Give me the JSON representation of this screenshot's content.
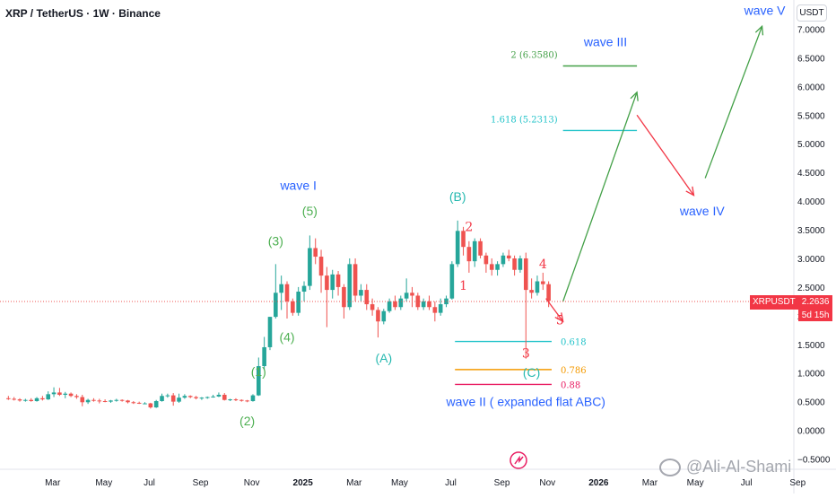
{
  "header": {
    "symbol_line": "XRP / TetherUS · 1W · Binance",
    "currency_button": "USDT"
  },
  "price_tag": {
    "symbol": "XRPUSDT",
    "price": "2.2636",
    "countdown": "5d 15h"
  },
  "watermark": "@Ali-Al-Shami",
  "colors": {
    "up": "#26a69a",
    "down": "#ef5350",
    "green_label": "#4caf50",
    "teal_label": "#26b9b0",
    "blue_label": "#2962ff",
    "red_label": "#f23645",
    "fib_teal": "#22c3c9",
    "fib_orange": "#f59a00",
    "fib_red": "#e91e63",
    "proj_green": "#43a047"
  },
  "chart_data": {
    "type": "candlestick",
    "title": "XRP / TetherUS · 1W · Binance",
    "ylim": [
      -0.5,
      7.0
    ],
    "y_ticks": [
      "7.0000",
      "6.5000",
      "6.0000",
      "5.5000",
      "5.0000",
      "4.5000",
      "4.0000",
      "3.5000",
      "3.0000",
      "2.5000",
      "2.0000",
      "1.5000",
      "1.0000",
      "0.5000",
      "0.0000",
      "−0.5000"
    ],
    "x_ticks": [
      "Mar",
      "May",
      "Jul",
      "Sep",
      "Nov",
      "2025",
      "Mar",
      "May",
      "Jul",
      "Sep",
      "Nov",
      "2026",
      "Mar",
      "May",
      "Jul",
      "Sep"
    ],
    "grid": false,
    "candles": [
      {
        "t": "2024-01-08",
        "o": 0.56,
        "h": 0.6,
        "l": 0.53,
        "c": 0.55
      },
      {
        "t": "2024-01-15",
        "o": 0.55,
        "h": 0.58,
        "l": 0.52,
        "c": 0.54
      },
      {
        "t": "2024-01-22",
        "o": 0.54,
        "h": 0.56,
        "l": 0.5,
        "c": 0.52
      },
      {
        "t": "2024-01-29",
        "o": 0.52,
        "h": 0.55,
        "l": 0.5,
        "c": 0.53
      },
      {
        "t": "2024-02-05",
        "o": 0.53,
        "h": 0.56,
        "l": 0.5,
        "c": 0.51
      },
      {
        "t": "2024-02-12",
        "o": 0.51,
        "h": 0.58,
        "l": 0.5,
        "c": 0.56
      },
      {
        "t": "2024-02-19",
        "o": 0.56,
        "h": 0.6,
        "l": 0.52,
        "c": 0.54
      },
      {
        "t": "2024-02-26",
        "o": 0.54,
        "h": 0.68,
        "l": 0.53,
        "c": 0.63
      },
      {
        "t": "2024-03-04",
        "o": 0.63,
        "h": 0.75,
        "l": 0.58,
        "c": 0.66
      },
      {
        "t": "2024-03-11",
        "o": 0.66,
        "h": 0.74,
        "l": 0.6,
        "c": 0.62
      },
      {
        "t": "2024-03-18",
        "o": 0.62,
        "h": 0.67,
        "l": 0.56,
        "c": 0.64
      },
      {
        "t": "2024-03-25",
        "o": 0.64,
        "h": 0.66,
        "l": 0.58,
        "c": 0.6
      },
      {
        "t": "2024-04-01",
        "o": 0.6,
        "h": 0.63,
        "l": 0.55,
        "c": 0.58
      },
      {
        "t": "2024-04-08",
        "o": 0.58,
        "h": 0.62,
        "l": 0.42,
        "c": 0.49
      },
      {
        "t": "2024-04-15",
        "o": 0.49,
        "h": 0.55,
        "l": 0.46,
        "c": 0.53
      },
      {
        "t": "2024-04-22",
        "o": 0.53,
        "h": 0.56,
        "l": 0.5,
        "c": 0.52
      },
      {
        "t": "2024-04-29",
        "o": 0.52,
        "h": 0.55,
        "l": 0.47,
        "c": 0.51
      },
      {
        "t": "2024-05-06",
        "o": 0.51,
        "h": 0.54,
        "l": 0.49,
        "c": 0.5
      },
      {
        "t": "2024-05-13",
        "o": 0.5,
        "h": 0.53,
        "l": 0.48,
        "c": 0.52
      },
      {
        "t": "2024-05-20",
        "o": 0.52,
        "h": 0.55,
        "l": 0.5,
        "c": 0.53
      },
      {
        "t": "2024-05-27",
        "o": 0.53,
        "h": 0.54,
        "l": 0.5,
        "c": 0.52
      },
      {
        "t": "2024-06-03",
        "o": 0.52,
        "h": 0.53,
        "l": 0.47,
        "c": 0.49
      },
      {
        "t": "2024-06-10",
        "o": 0.49,
        "h": 0.51,
        "l": 0.46,
        "c": 0.48
      },
      {
        "t": "2024-06-17",
        "o": 0.48,
        "h": 0.5,
        "l": 0.46,
        "c": 0.47
      },
      {
        "t": "2024-06-24",
        "o": 0.47,
        "h": 0.49,
        "l": 0.46,
        "c": 0.47
      },
      {
        "t": "2024-07-01",
        "o": 0.47,
        "h": 0.48,
        "l": 0.38,
        "c": 0.4
      },
      {
        "t": "2024-07-08",
        "o": 0.4,
        "h": 0.53,
        "l": 0.39,
        "c": 0.51
      },
      {
        "t": "2024-07-15",
        "o": 0.51,
        "h": 0.64,
        "l": 0.5,
        "c": 0.6
      },
      {
        "t": "2024-07-22",
        "o": 0.6,
        "h": 0.64,
        "l": 0.57,
        "c": 0.61
      },
      {
        "t": "2024-07-29",
        "o": 0.61,
        "h": 0.65,
        "l": 0.43,
        "c": 0.5
      },
      {
        "t": "2024-08-05",
        "o": 0.5,
        "h": 0.64,
        "l": 0.48,
        "c": 0.57
      },
      {
        "t": "2024-08-12",
        "o": 0.57,
        "h": 0.63,
        "l": 0.55,
        "c": 0.6
      },
      {
        "t": "2024-08-19",
        "o": 0.6,
        "h": 0.61,
        "l": 0.56,
        "c": 0.58
      },
      {
        "t": "2024-08-26",
        "o": 0.58,
        "h": 0.6,
        "l": 0.54,
        "c": 0.56
      },
      {
        "t": "2024-09-02",
        "o": 0.56,
        "h": 0.58,
        "l": 0.53,
        "c": 0.57
      },
      {
        "t": "2024-09-09",
        "o": 0.57,
        "h": 0.59,
        "l": 0.55,
        "c": 0.58
      },
      {
        "t": "2024-09-16",
        "o": 0.58,
        "h": 0.62,
        "l": 0.57,
        "c": 0.59
      },
      {
        "t": "2024-09-23",
        "o": 0.59,
        "h": 0.66,
        "l": 0.58,
        "c": 0.62
      },
      {
        "t": "2024-09-30",
        "o": 0.62,
        "h": 0.65,
        "l": 0.52,
        "c": 0.53
      },
      {
        "t": "2024-10-07",
        "o": 0.53,
        "h": 0.55,
        "l": 0.51,
        "c": 0.54
      },
      {
        "t": "2024-10-14",
        "o": 0.54,
        "h": 0.56,
        "l": 0.51,
        "c": 0.53
      },
      {
        "t": "2024-10-21",
        "o": 0.53,
        "h": 0.54,
        "l": 0.5,
        "c": 0.52
      },
      {
        "t": "2024-10-28",
        "o": 0.52,
        "h": 0.53,
        "l": 0.49,
        "c": 0.51
      },
      {
        "t": "2024-11-04",
        "o": 0.51,
        "h": 0.63,
        "l": 0.5,
        "c": 0.61
      },
      {
        "t": "2024-11-11",
        "o": 0.61,
        "h": 1.27,
        "l": 0.6,
        "c": 1.12
      },
      {
        "t": "2024-11-18",
        "o": 1.12,
        "h": 1.63,
        "l": 1.05,
        "c": 1.45
      },
      {
        "t": "2024-11-25",
        "o": 1.45,
        "h": 1.98,
        "l": 1.4,
        "c": 1.98
      },
      {
        "t": "2024-12-02",
        "o": 1.98,
        "h": 2.9,
        "l": 1.95,
        "c": 2.4
      },
      {
        "t": "2024-12-09",
        "o": 2.4,
        "h": 2.7,
        "l": 2.1,
        "c": 2.55
      },
      {
        "t": "2024-12-16",
        "o": 2.55,
        "h": 2.6,
        "l": 1.95,
        "c": 2.25
      },
      {
        "t": "2024-12-23",
        "o": 2.25,
        "h": 2.3,
        "l": 2.0,
        "c": 2.05
      },
      {
        "t": "2024-12-30",
        "o": 2.05,
        "h": 2.5,
        "l": 2.0,
        "c": 2.42
      },
      {
        "t": "2025-01-06",
        "o": 2.42,
        "h": 2.6,
        "l": 2.25,
        "c": 2.52
      },
      {
        "t": "2025-01-13",
        "o": 2.52,
        "h": 3.4,
        "l": 2.45,
        "c": 3.18
      },
      {
        "t": "2025-01-20",
        "o": 3.18,
        "h": 3.35,
        "l": 2.9,
        "c": 3.03
      },
      {
        "t": "2025-01-27",
        "o": 3.03,
        "h": 3.15,
        "l": 2.4,
        "c": 2.7
      },
      {
        "t": "2025-02-03",
        "o": 2.7,
        "h": 2.85,
        "l": 1.8,
        "c": 2.45
      },
      {
        "t": "2025-02-10",
        "o": 2.45,
        "h": 2.8,
        "l": 2.3,
        "c": 2.72
      },
      {
        "t": "2025-02-17",
        "o": 2.72,
        "h": 2.78,
        "l": 2.35,
        "c": 2.5
      },
      {
        "t": "2025-02-24",
        "o": 2.5,
        "h": 2.55,
        "l": 1.95,
        "c": 2.15
      },
      {
        "t": "2025-03-03",
        "o": 2.15,
        "h": 3.0,
        "l": 2.1,
        "c": 2.9
      },
      {
        "t": "2025-03-10",
        "o": 2.9,
        "h": 3.0,
        "l": 2.25,
        "c": 2.35
      },
      {
        "t": "2025-03-17",
        "o": 2.35,
        "h": 2.55,
        "l": 2.25,
        "c": 2.45
      },
      {
        "t": "2025-03-24",
        "o": 2.45,
        "h": 2.55,
        "l": 2.1,
        "c": 2.2
      },
      {
        "t": "2025-03-31",
        "o": 2.2,
        "h": 2.3,
        "l": 2.0,
        "c": 2.1
      },
      {
        "t": "2025-04-07",
        "o": 2.1,
        "h": 2.15,
        "l": 1.62,
        "c": 1.9
      },
      {
        "t": "2025-04-14",
        "o": 1.9,
        "h": 2.12,
        "l": 1.85,
        "c": 2.08
      },
      {
        "t": "2025-04-21",
        "o": 2.08,
        "h": 2.3,
        "l": 2.05,
        "c": 2.25
      },
      {
        "t": "2025-04-28",
        "o": 2.25,
        "h": 2.35,
        "l": 2.1,
        "c": 2.15
      },
      {
        "t": "2025-05-05",
        "o": 2.15,
        "h": 2.35,
        "l": 2.1,
        "c": 2.3
      },
      {
        "t": "2025-05-12",
        "o": 2.3,
        "h": 2.65,
        "l": 2.25,
        "c": 2.4
      },
      {
        "t": "2025-05-19",
        "o": 2.4,
        "h": 2.5,
        "l": 2.15,
        "c": 2.35
      },
      {
        "t": "2025-05-26",
        "o": 2.35,
        "h": 2.4,
        "l": 2.1,
        "c": 2.15
      },
      {
        "t": "2025-06-02",
        "o": 2.15,
        "h": 2.3,
        "l": 2.1,
        "c": 2.25
      },
      {
        "t": "2025-06-09",
        "o": 2.25,
        "h": 2.35,
        "l": 2.1,
        "c": 2.15
      },
      {
        "t": "2025-06-16",
        "o": 2.15,
        "h": 2.25,
        "l": 1.9,
        "c": 2.05
      },
      {
        "t": "2025-06-23",
        "o": 2.05,
        "h": 2.3,
        "l": 2.0,
        "c": 2.2
      },
      {
        "t": "2025-06-30",
        "o": 2.2,
        "h": 2.35,
        "l": 2.15,
        "c": 2.3
      },
      {
        "t": "2025-07-07",
        "o": 2.3,
        "h": 2.95,
        "l": 2.28,
        "c": 2.9
      },
      {
        "t": "2025-07-14",
        "o": 2.9,
        "h": 3.66,
        "l": 2.85,
        "c": 3.48
      },
      {
        "t": "2025-07-21",
        "o": 3.48,
        "h": 3.55,
        "l": 3.05,
        "c": 3.2
      },
      {
        "t": "2025-07-28",
        "o": 3.2,
        "h": 3.3,
        "l": 2.75,
        "c": 2.95
      },
      {
        "t": "2025-08-04",
        "o": 2.95,
        "h": 3.35,
        "l": 2.85,
        "c": 3.3
      },
      {
        "t": "2025-08-11",
        "o": 3.3,
        "h": 3.35,
        "l": 3.0,
        "c": 3.05
      },
      {
        "t": "2025-08-18",
        "o": 3.05,
        "h": 3.1,
        "l": 2.75,
        "c": 2.9
      },
      {
        "t": "2025-08-25",
        "o": 2.9,
        "h": 3.0,
        "l": 2.7,
        "c": 2.8
      },
      {
        "t": "2025-09-01",
        "o": 2.8,
        "h": 2.95,
        "l": 2.7,
        "c": 2.9
      },
      {
        "t": "2025-09-08",
        "o": 2.9,
        "h": 3.1,
        "l": 2.85,
        "c": 3.05
      },
      {
        "t": "2025-09-15",
        "o": 3.05,
        "h": 3.15,
        "l": 2.95,
        "c": 3.0
      },
      {
        "t": "2025-09-22",
        "o": 3.0,
        "h": 3.05,
        "l": 2.7,
        "c": 2.8
      },
      {
        "t": "2025-09-29",
        "o": 2.8,
        "h": 3.05,
        "l": 2.75,
        "c": 3.0
      },
      {
        "t": "2025-10-06",
        "o": 3.0,
        "h": 3.1,
        "l": 1.25,
        "c": 2.45
      },
      {
        "t": "2025-10-13",
        "o": 2.45,
        "h": 2.65,
        "l": 2.3,
        "c": 2.4
      },
      {
        "t": "2025-10-20",
        "o": 2.4,
        "h": 2.7,
        "l": 2.35,
        "c": 2.6
      },
      {
        "t": "2025-10-27",
        "o": 2.6,
        "h": 2.75,
        "l": 2.45,
        "c": 2.55
      },
      {
        "t": "2025-11-03",
        "o": 2.55,
        "h": 2.6,
        "l": 2.15,
        "c": 2.26
      }
    ],
    "horizontal_levels": [
      {
        "value": 6.358,
        "label": "2 (6.3580)",
        "color": "#43a047",
        "from": "2025-11-24",
        "to": "2026-02-23"
      },
      {
        "value": 5.2313,
        "label": "1.618 (5.2313)",
        "color": "#22c3c9",
        "from": "2025-11-24",
        "to": "2026-02-23"
      },
      {
        "value": 1.55,
        "label": "0.618",
        "color": "#22c3c9",
        "from": "2025-07-14",
        "to": "2025-11-10"
      },
      {
        "value": 1.06,
        "label": "0.786",
        "color": "#f59a00",
        "from": "2025-07-14",
        "to": "2025-11-10"
      },
      {
        "value": 0.8,
        "label": "0.88",
        "color": "#e91e63",
        "from": "2025-07-14",
        "to": "2025-11-10"
      }
    ],
    "projection_arrows": [
      {
        "from": [
          "2025-11-24",
          2.25
        ],
        "to": [
          "2026-02-23",
          5.9
        ],
        "color": "#43a047"
      },
      {
        "from": [
          "2026-02-23",
          5.5
        ],
        "to": [
          "2026-05-04",
          4.1
        ],
        "color": "#f23645"
      },
      {
        "from": [
          "2026-05-18",
          4.4
        ],
        "to": [
          "2026-07-27",
          7.05
        ],
        "color": "#43a047"
      },
      {
        "from": [
          "2025-11-03",
          2.3
        ],
        "to": [
          "2025-11-24",
          1.9
        ],
        "color": "#f23645"
      }
    ],
    "annotations": [
      {
        "text": "wave I",
        "at": [
          "2024-12-30",
          4.2
        ],
        "color": "#2962ff"
      },
      {
        "text": "(5)",
        "at": [
          "2025-01-13",
          3.75
        ],
        "color": "#4caf50"
      },
      {
        "text": "(3)",
        "at": [
          "2024-12-02",
          3.23
        ],
        "color": "#4caf50"
      },
      {
        "text": "(4)",
        "at": [
          "2024-12-16",
          1.55
        ],
        "color": "#4caf50"
      },
      {
        "text": "(1)",
        "at": [
          "2024-11-11",
          0.95
        ],
        "color": "#4caf50"
      },
      {
        "text": "(2)",
        "at": [
          "2024-10-28",
          0.09
        ],
        "color": "#4caf50"
      },
      {
        "text": "(A)",
        "at": [
          "2025-04-14",
          1.18
        ],
        "color": "#26b9b0"
      },
      {
        "text": "(B)",
        "at": [
          "2025-07-14",
          4.0
        ],
        "color": "#26b9b0"
      },
      {
        "text": "(C)",
        "at": [
          "2025-10-13",
          0.93
        ],
        "color": "#26b9b0"
      },
      {
        "text": "2",
        "at": [
          "2025-07-28",
          3.48
        ],
        "color": "#f23645"
      },
      {
        "text": "1",
        "at": [
          "2025-07-21",
          2.45
        ],
        "color": "#f23645"
      },
      {
        "text": "4",
        "at": [
          "2025-10-27",
          2.83
        ],
        "color": "#f23645"
      },
      {
        "text": "3",
        "at": [
          "2025-10-06",
          1.27
        ],
        "color": "#f23645"
      },
      {
        "text": "5",
        "at": [
          "2025-11-17",
          1.85
        ],
        "color": "#f23645"
      },
      {
        "text": "wave II ( expanded flat ABC)",
        "at": [
          "2025-10-06",
          0.42
        ],
        "color": "#2962ff"
      },
      {
        "text": "wave III",
        "at": [
          "2026-01-12",
          6.7
        ],
        "color": "#2962ff"
      },
      {
        "text": "wave IV",
        "at": [
          "2026-05-11",
          3.75
        ],
        "color": "#2962ff"
      },
      {
        "text": "wave V",
        "at": [
          "2026-07-27",
          7.25
        ],
        "color": "#2962ff"
      }
    ]
  }
}
